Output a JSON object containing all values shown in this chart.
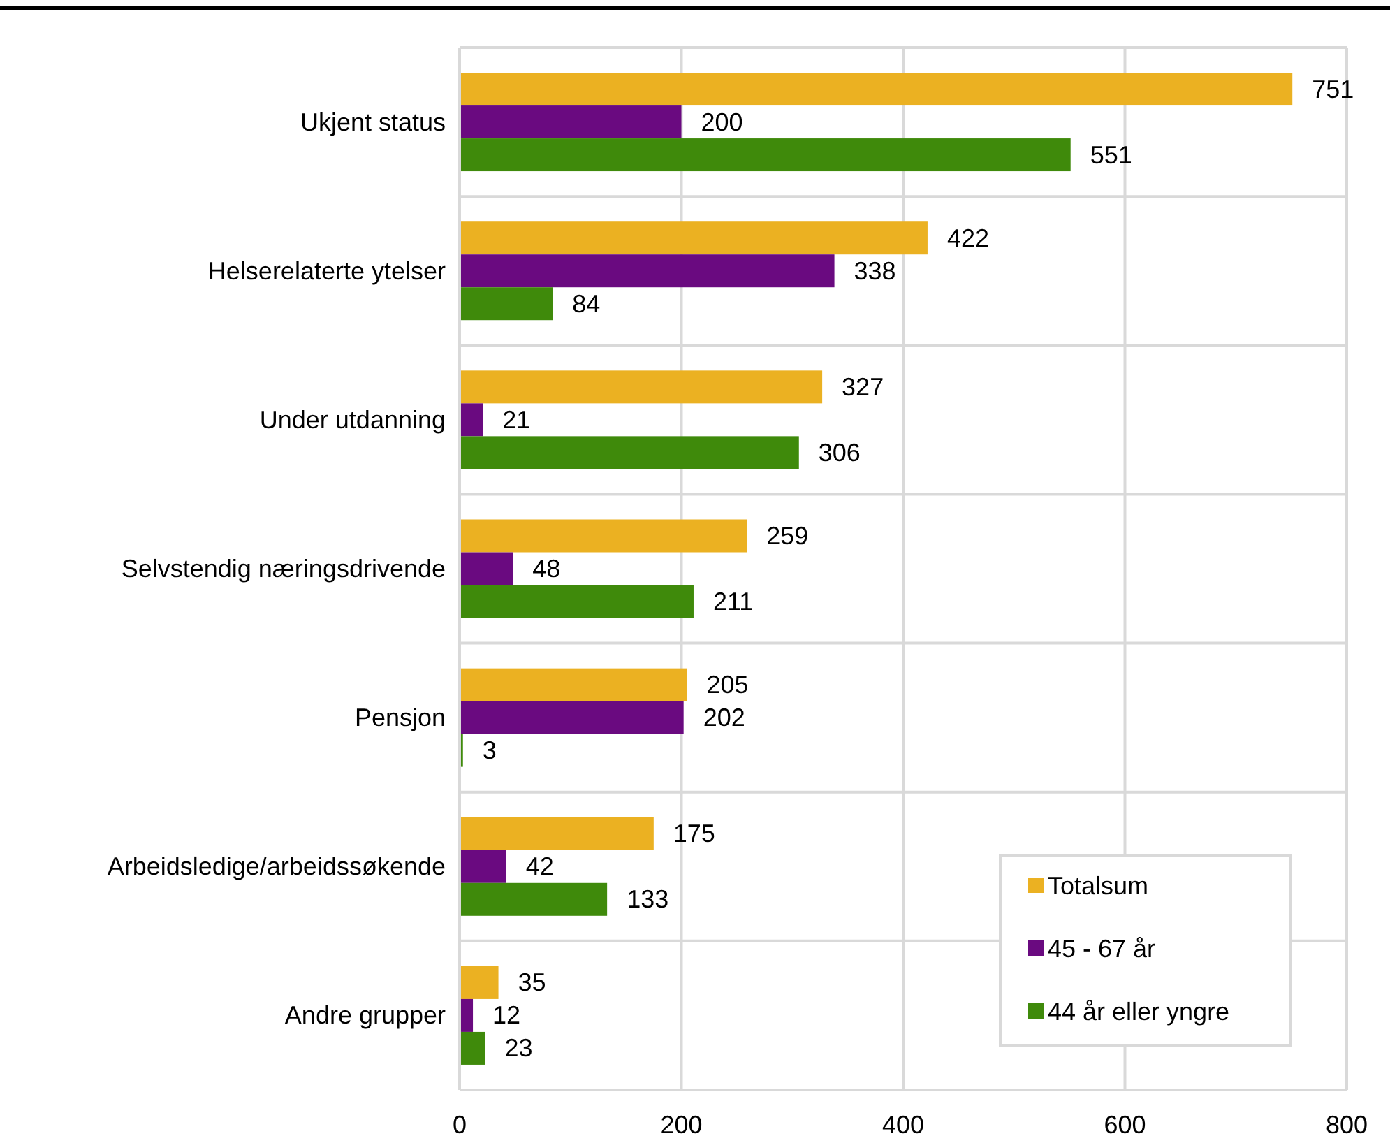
{
  "chart_data": {
    "type": "bar",
    "orientation": "horizontal",
    "categories": [
      "Ukjent status",
      "Helserelaterte ytelser",
      "Under utdanning",
      "Selvstendig næringsdrivende",
      "Pensjon",
      "Arbeidsledige/arbeidssøkende",
      "Andre grupper"
    ],
    "series": [
      {
        "name": "Totalsum",
        "color": "#ebb122",
        "values": [
          751,
          422,
          327,
          259,
          205,
          175,
          35
        ]
      },
      {
        "name": "45 - 67 år",
        "color": "#6a0a80",
        "values": [
          200,
          338,
          21,
          48,
          202,
          42,
          12
        ]
      },
      {
        "name": "44 år eller yngre",
        "color": "#3f8a0b",
        "values": [
          551,
          84,
          306,
          211,
          3,
          133,
          23
        ]
      }
    ],
    "xlim": [
      0,
      800
    ],
    "xticks": [
      0,
      200,
      400,
      600,
      800
    ],
    "grid": true,
    "legend": "bottom right",
    "data_labels": true
  }
}
